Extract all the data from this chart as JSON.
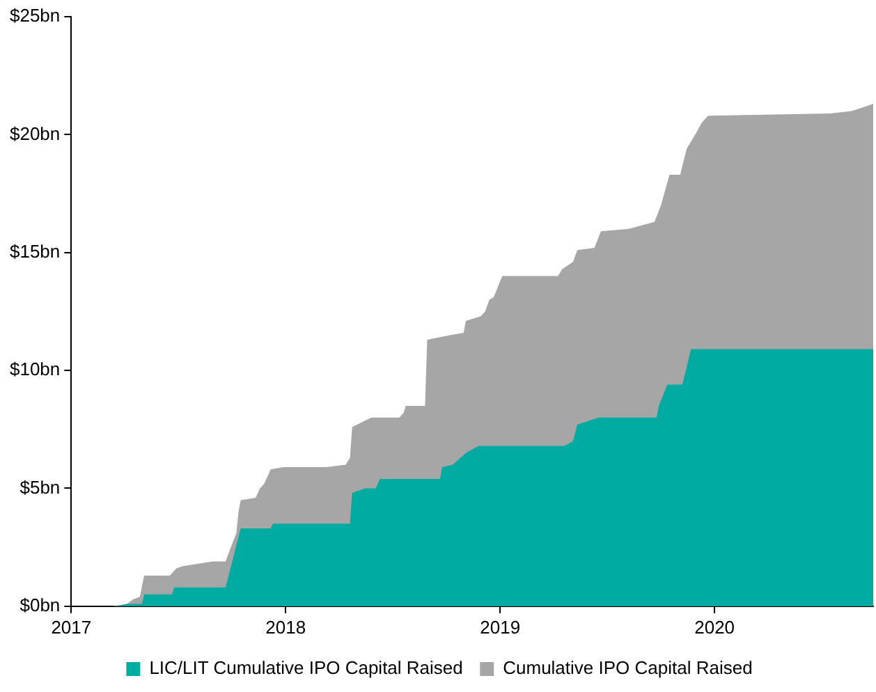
{
  "chart_data": {
    "type": "area",
    "legend": "bottom",
    "grid": false,
    "xlim": [
      2017,
      2020.74
    ],
    "xticks": [
      2017,
      2018,
      2019,
      2020
    ],
    "ylim": [
      0,
      25
    ],
    "yticks": [
      {
        "value": 0,
        "label": "$0bn"
      },
      {
        "value": 5,
        "label": "$5bn"
      },
      {
        "value": 10,
        "label": "$10bn"
      },
      {
        "value": 15,
        "label": "$15bn"
      },
      {
        "value": 20,
        "label": "$20bn"
      },
      {
        "value": 25,
        "label": "$25bn"
      }
    ],
    "series": [
      {
        "name": "Cumulative IPO Capital Raised",
        "color": "#a6a6a6",
        "x": [
          2017.0,
          2017.19,
          2017.26,
          2017.29,
          2017.32,
          2017.34,
          2017.46,
          2017.49,
          2017.52,
          2017.66,
          2017.72,
          2017.74,
          2017.77,
          2017.78,
          2017.79,
          2017.86,
          2017.88,
          2017.9,
          2017.93,
          2017.99,
          2018.19,
          2018.28,
          2018.3,
          2018.31,
          2018.4,
          2018.53,
          2018.55,
          2018.56,
          2018.65,
          2018.66,
          2018.77,
          2018.83,
          2018.84,
          2018.91,
          2018.93,
          2018.95,
          2018.97,
          2019.01,
          2019.27,
          2019.29,
          2019.34,
          2019.36,
          2019.44,
          2019.47,
          2019.6,
          2019.72,
          2019.75,
          2019.79,
          2019.84,
          2019.87,
          2019.91,
          2019.94,
          2019.97,
          2020.54,
          2020.64,
          2020.74
        ],
        "values": [
          0,
          0,
          0.1,
          0.3,
          0.4,
          1.3,
          1.3,
          1.6,
          1.7,
          1.9,
          1.9,
          2.4,
          3.1,
          4.0,
          4.5,
          4.6,
          5.0,
          5.2,
          5.8,
          5.9,
          5.9,
          6.0,
          6.3,
          7.6,
          8.0,
          8.0,
          8.2,
          8.5,
          8.5,
          11.3,
          11.5,
          11.6,
          12.1,
          12.3,
          12.5,
          13.0,
          13.1,
          14.0,
          14.0,
          14.3,
          14.6,
          15.1,
          15.2,
          15.9,
          16.0,
          16.3,
          17.0,
          18.3,
          18.3,
          19.4,
          20.0,
          20.5,
          20.8,
          20.9,
          21.0,
          21.3
        ]
      },
      {
        "name": "LIC/LIT Cumulative IPO Capital Raised",
        "color": "#00aba1",
        "x": [
          2017.0,
          2017.21,
          2017.26,
          2017.33,
          2017.34,
          2017.47,
          2017.48,
          2017.72,
          2017.79,
          2017.93,
          2017.94,
          2018.3,
          2018.31,
          2018.37,
          2018.42,
          2018.44,
          2018.72,
          2018.73,
          2018.78,
          2018.84,
          2018.9,
          2019.3,
          2019.34,
          2019.36,
          2019.46,
          2019.73,
          2019.74,
          2019.78,
          2019.85,
          2019.89,
          2020.74
        ],
        "values": [
          0,
          0,
          0.1,
          0.1,
          0.5,
          0.5,
          0.8,
          0.8,
          3.3,
          3.3,
          3.5,
          3.5,
          4.8,
          5.0,
          5.0,
          5.4,
          5.4,
          5.9,
          6.0,
          6.5,
          6.8,
          6.8,
          7.0,
          7.7,
          8.0,
          8.0,
          8.5,
          9.4,
          9.4,
          10.9,
          10.9
        ]
      }
    ]
  }
}
